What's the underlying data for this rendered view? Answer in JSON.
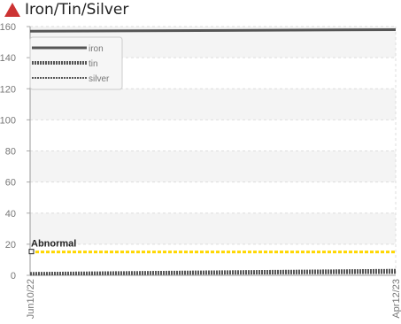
{
  "chart_data": {
    "type": "line",
    "title": "Iron/Tin/Silver",
    "x": [
      "Jun10/22",
      "Apr12/23"
    ],
    "ylim": [
      0,
      160
    ],
    "yticks": [
      0,
      20,
      40,
      60,
      80,
      100,
      120,
      140,
      160
    ],
    "series": [
      {
        "name": "iron",
        "values": [
          157,
          158
        ]
      },
      {
        "name": "tin",
        "values": [
          1,
          3
        ]
      },
      {
        "name": "silver",
        "values": [
          0.5,
          1.5
        ]
      }
    ],
    "annotations": [
      {
        "label": "Abnormal",
        "y": 15
      }
    ],
    "grid": true,
    "legend_position": "top-left",
    "colors": {
      "series": "#555555",
      "threshold": "#ffd700",
      "grid": "#dddddd",
      "alert": "#cc3333"
    }
  },
  "header": {
    "icon": "alert-triangle-icon"
  }
}
